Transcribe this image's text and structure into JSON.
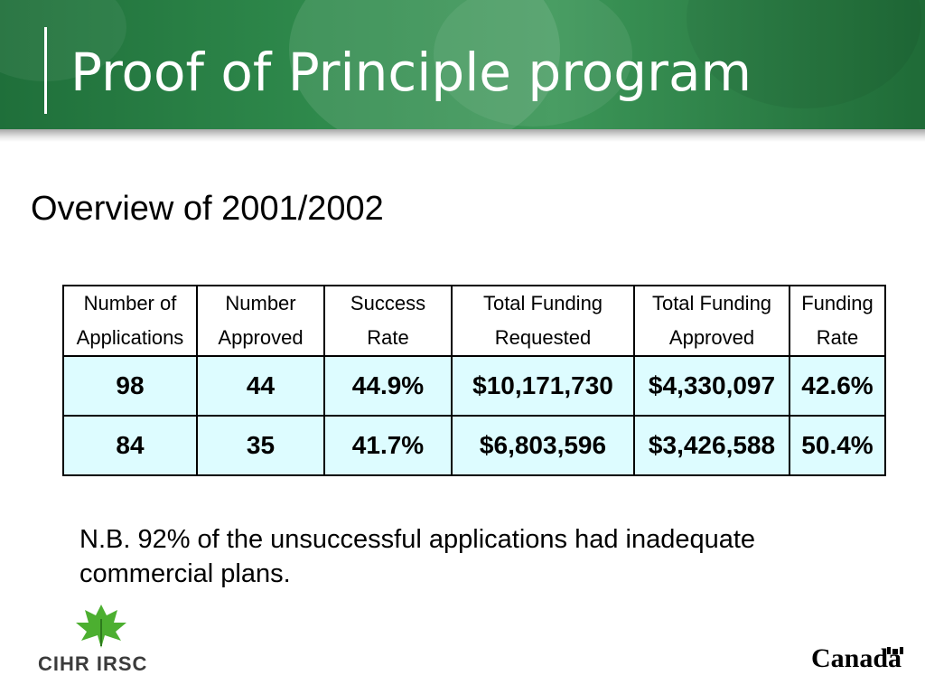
{
  "slide": {
    "title": "Proof of Principle program",
    "subtitle": "Overview of 2001/2002",
    "note_line1": "N.B. 92% of the unsuccessful applications had inadequate",
    "note_line2": "commercial plans."
  },
  "table": {
    "headers": [
      [
        "Number of",
        "Applications"
      ],
      [
        "Number",
        "Approved"
      ],
      [
        "Success",
        "Rate"
      ],
      [
        "Total Funding",
        "Requested"
      ],
      [
        "Total Funding",
        "Approved"
      ],
      [
        "Funding",
        "Rate"
      ]
    ],
    "rows": [
      [
        "98",
        "44",
        "44.9%",
        "$10,171,730",
        "$4,330,097",
        "42.6%"
      ],
      [
        "84",
        "35",
        "41.7%",
        "$6,803,596",
        "$3,426,588",
        "50.4%"
      ]
    ]
  },
  "logos": {
    "left": "CIHR IRSC",
    "right": "Canada"
  },
  "colors": {
    "header_green": "#2f8a4c",
    "cell_fill": "#ddfcff",
    "logo_green": "#4caf30"
  }
}
